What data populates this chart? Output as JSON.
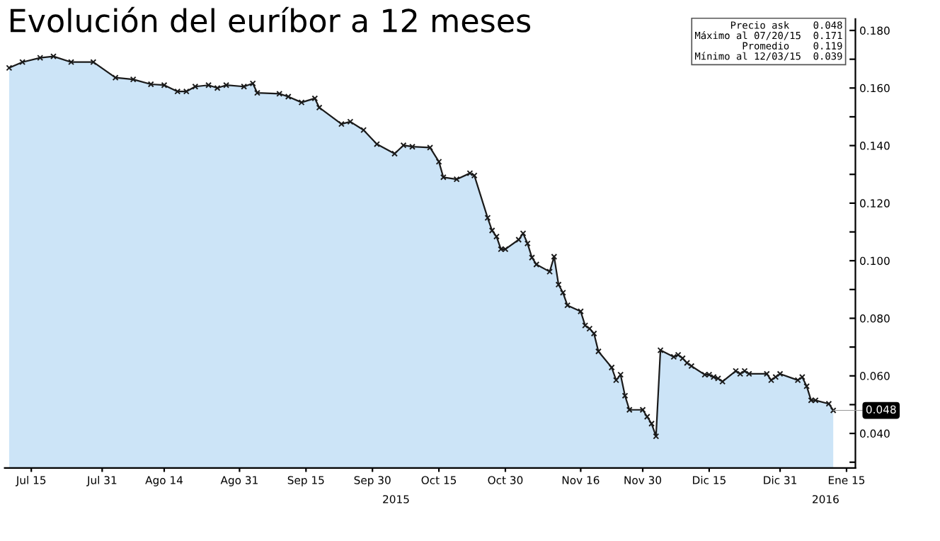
{
  "chart_data": {
    "type": "area",
    "title": "Evolución del euríbor a 12 meses",
    "x": [
      "2015-07-10",
      "2015-07-13",
      "2015-07-17",
      "2015-07-20",
      "2015-07-24",
      "2015-07-29",
      "2015-08-03",
      "2015-08-07",
      "2015-08-11",
      "2015-08-14",
      "2015-08-17",
      "2015-08-19",
      "2015-08-21",
      "2015-08-24",
      "2015-08-26",
      "2015-08-28",
      "2015-09-01",
      "2015-09-03",
      "2015-09-04",
      "2015-09-09",
      "2015-09-11",
      "2015-09-14",
      "2015-09-17",
      "2015-09-18",
      "2015-09-23",
      "2015-09-25",
      "2015-09-28",
      "2015-10-01",
      "2015-10-05",
      "2015-10-07",
      "2015-10-09",
      "2015-10-13",
      "2015-10-15",
      "2015-10-16",
      "2015-10-19",
      "2015-10-22",
      "2015-10-23",
      "2015-10-26",
      "2015-10-27",
      "2015-10-28",
      "2015-10-29",
      "2015-10-30",
      "2015-11-02",
      "2015-11-03",
      "2015-11-04",
      "2015-11-05",
      "2015-11-06",
      "2015-11-09",
      "2015-11-10",
      "2015-11-11",
      "2015-11-12",
      "2015-11-13",
      "2015-11-16",
      "2015-11-17",
      "2015-11-18",
      "2015-11-19",
      "2015-11-20",
      "2015-11-23",
      "2015-11-24",
      "2015-11-25",
      "2015-11-26",
      "2015-11-27",
      "2015-11-30",
      "2015-12-01",
      "2015-12-02",
      "2015-12-03",
      "2015-12-04",
      "2015-12-07",
      "2015-12-08",
      "2015-12-09",
      "2015-12-10",
      "2015-12-11",
      "2015-12-14",
      "2015-12-15",
      "2015-12-16",
      "2015-12-17",
      "2015-12-18",
      "2015-12-21",
      "2015-12-22",
      "2015-12-23",
      "2015-12-24",
      "2015-12-28",
      "2015-12-29",
      "2015-12-30",
      "2015-12-31",
      "2016-01-04",
      "2016-01-05",
      "2016-01-06",
      "2016-01-07",
      "2016-01-08",
      "2016-01-11",
      "2016-01-12"
    ],
    "series": [
      {
        "color": "#cce4f7",
        "values": [
          0.167,
          0.169,
          0.1705,
          0.171,
          0.169,
          0.169,
          0.1636,
          0.163,
          0.1613,
          0.161,
          0.1588,
          0.1588,
          0.1605,
          0.161,
          0.16,
          0.161,
          0.1605,
          0.1616,
          0.1583,
          0.158,
          0.157,
          0.155,
          0.1564,
          0.1532,
          0.1475,
          0.1483,
          0.1454,
          0.1405,
          0.1372,
          0.1401,
          0.1396,
          0.1393,
          0.1344,
          0.129,
          0.1283,
          0.1304,
          0.1296,
          0.1149,
          0.1105,
          0.1084,
          0.104,
          0.104,
          0.1073,
          0.1095,
          0.106,
          0.1011,
          0.0987,
          0.0962,
          0.1014,
          0.0917,
          0.0889,
          0.0845,
          0.0824,
          0.0775,
          0.0764,
          0.0747,
          0.0685,
          0.0629,
          0.0585,
          0.0604,
          0.0531,
          0.0482,
          0.0482,
          0.0458,
          0.0434,
          0.039,
          0.0689,
          0.0666,
          0.0673,
          0.0661,
          0.0645,
          0.0634,
          0.0604,
          0.0604,
          0.0596,
          0.0591,
          0.058,
          0.0617,
          0.0607,
          0.0617,
          0.0607,
          0.0607,
          0.0585,
          0.0596,
          0.0607,
          0.0585,
          0.0596,
          0.0564,
          0.0515,
          0.0515,
          0.0503,
          0.048
        ]
      }
    ],
    "marker": "cross",
    "line_style": "solid",
    "grid": false,
    "xlim": [
      "2015-07-09",
      "2016-01-17"
    ],
    "xticks": [
      {
        "value": "2015-07-15",
        "label": "Jul 15"
      },
      {
        "value": "2015-07-31",
        "label": "Jul 31"
      },
      {
        "value": "2015-08-14",
        "label": "Ago 14"
      },
      {
        "value": "2015-08-31",
        "label": "Ago 31"
      },
      {
        "value": "2015-09-15",
        "label": "Sep 15"
      },
      {
        "value": "2015-09-30",
        "label": "Sep 30"
      },
      {
        "value": "2015-10-15",
        "label": "Oct 15"
      },
      {
        "value": "2015-10-30",
        "label": "Oct 30"
      },
      {
        "value": "2015-11-16",
        "label": "Nov 16"
      },
      {
        "value": "2015-11-30",
        "label": "Nov 30"
      },
      {
        "value": "2015-12-15",
        "label": "Dic 15"
      },
      {
        "value": "2015-12-31",
        "label": "Dic 31"
      },
      {
        "value": "2016-01-15",
        "label": "Ene 15"
      }
    ],
    "ylim": [
      0.028,
      0.184
    ],
    "yticks": [
      {
        "value": 0.03,
        "label": null
      },
      {
        "value": 0.04,
        "label": "0.040"
      },
      {
        "value": 0.05,
        "label": null
      },
      {
        "value": 0.06,
        "label": "0.060"
      },
      {
        "value": 0.07,
        "label": null
      },
      {
        "value": 0.08,
        "label": "0.080"
      },
      {
        "value": 0.09,
        "label": null
      },
      {
        "value": 0.1,
        "label": "0.100"
      },
      {
        "value": 0.11,
        "label": null
      },
      {
        "value": 0.12,
        "label": "0.120"
      },
      {
        "value": 0.13,
        "label": null
      },
      {
        "value": 0.14,
        "label": "0.140"
      },
      {
        "value": 0.15,
        "label": null
      },
      {
        "value": 0.16,
        "label": "0.160"
      },
      {
        "value": 0.17,
        "label": null
      },
      {
        "value": 0.18,
        "label": "0.180"
      }
    ],
    "annotations": [
      "Precio ask    0.048",
      "Máximo al 07/20/15  0.171",
      "Promedio    0.119",
      "Mínimo al 12/03/15  0.039",
      "2015",
      "2016",
      {
        "text": "0.048",
        "x": "2016-01-12",
        "y": 0.048
      }
    ]
  }
}
